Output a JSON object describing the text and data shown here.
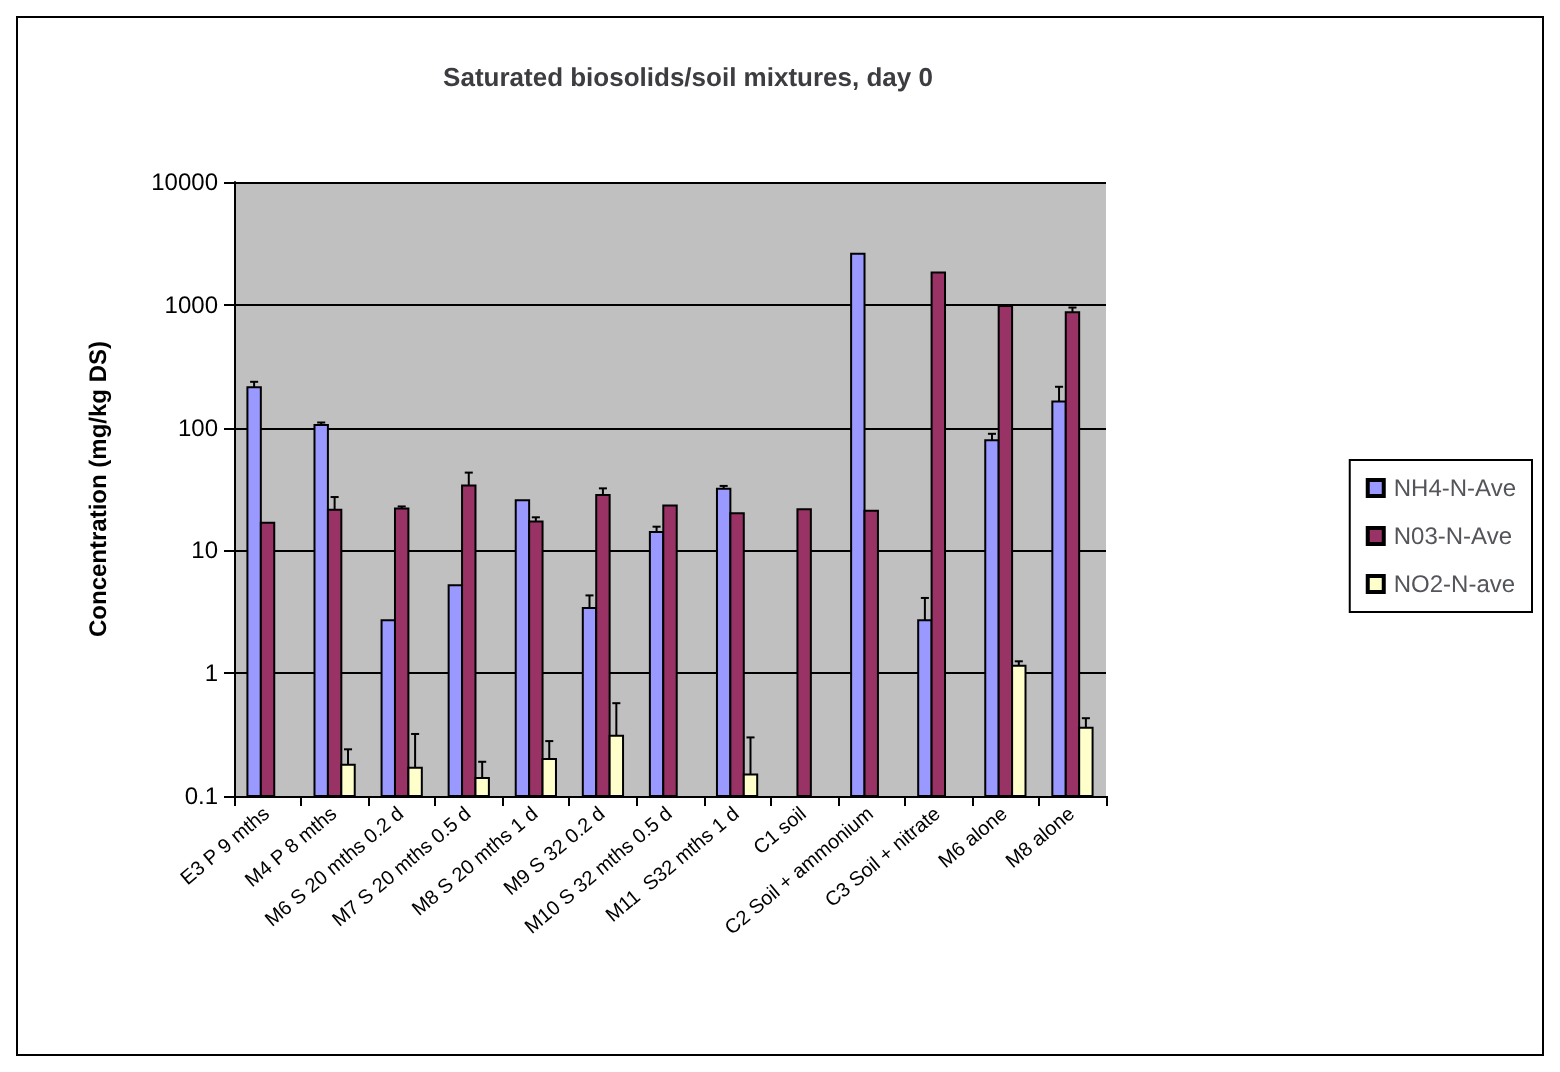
{
  "chart_data": {
    "type": "bar",
    "title": "Saturated biosolids/soil mixtures, day 0",
    "ylabel": "Concentration (mg/kg DS)",
    "categories": [
      "E3 P 9 mths",
      "M4 P 8 mths",
      "M6 S 20 mths 0.2 d",
      "M7 S 20 mths 0.5 d",
      "M8 S 20 mths 1 d",
      "M9 S 32 0.2 d",
      "M10 S 32 mths 0.5 d",
      "M11  S32 mths 1 d",
      "C1 soil",
      "C2 Soil + ammonium",
      "C3 Soil + nitrate",
      "M6 alone",
      "M8 alone"
    ],
    "series": [
      {
        "name": "NH4-N-Ave",
        "color": "#9999ff",
        "values": [
          213,
          105,
          2.7,
          5.2,
          25.6,
          3.4,
          14.1,
          31.8,
          null,
          2610,
          2.7,
          79,
          163
        ],
        "errors": [
          [
            213,
            236
          ],
          [
            105,
            110
          ],
          null,
          null,
          null,
          [
            3.4,
            4.3
          ],
          [
            14.1,
            15.6
          ],
          [
            31.8,
            33.5
          ],
          null,
          null,
          [
            2.7,
            4.1
          ],
          [
            79,
            89
          ],
          [
            163,
            215
          ]
        ]
      },
      {
        "name": "N03-N-Ave",
        "color": "#993366",
        "values": [
          16.8,
          21.4,
          21.9,
          33.7,
          17.2,
          28.2,
          23.2,
          20.1,
          21.6,
          21,
          1835,
          980,
          870
        ],
        "errors": [
          null,
          [
            21.4,
            27.2
          ],
          [
            21.9,
            22.8
          ],
          [
            33.7,
            43
          ],
          [
            17.2,
            18.6
          ],
          [
            28.2,
            32
          ],
          null,
          null,
          null,
          null,
          null,
          null,
          [
            870,
            950
          ]
        ]
      },
      {
        "name": "NO2-N-ave",
        "color": "#ffffcc",
        "values": [
          null,
          0.18,
          0.17,
          0.14,
          0.2,
          0.31,
          null,
          0.15,
          null,
          null,
          null,
          1.15,
          0.36
        ],
        "errors": [
          null,
          [
            0.18,
            0.24
          ],
          [
            0.17,
            0.32
          ],
          [
            0.14,
            0.19
          ],
          [
            0.2,
            0.28
          ],
          [
            0.31,
            0.57
          ],
          null,
          [
            0.15,
            0.3
          ],
          null,
          null,
          null,
          [
            1.15,
            1.25
          ],
          [
            0.36,
            0.43
          ]
        ]
      }
    ],
    "log": true,
    "ylim": [
      0.1,
      10000
    ],
    "yticks": [
      0.1,
      1,
      10,
      100,
      1000,
      10000
    ],
    "grid": "y",
    "legend": "right"
  }
}
